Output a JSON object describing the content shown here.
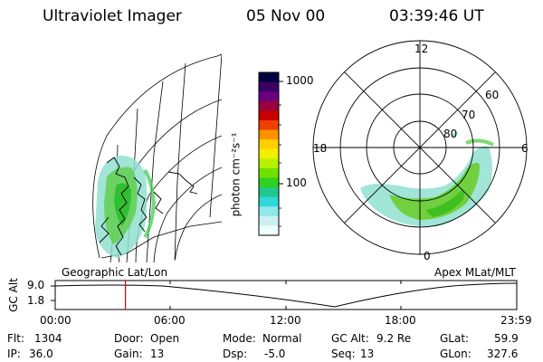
{
  "header": {
    "instrument": "Ultraviolet Imager",
    "date": "05 Nov 00",
    "time": "03:39:46 UT"
  },
  "colorbar": {
    "tick_labels": [
      "1000",
      "100"
    ],
    "unit_label": "photon cm⁻²s⁻¹",
    "colors": [
      "#000040",
      "#3a0060",
      "#6a0080",
      "#9a0040",
      "#c80000",
      "#ee4000",
      "#ff9000",
      "#ffd000",
      "#f0f000",
      "#b8f000",
      "#70e000",
      "#30d020",
      "#20c890",
      "#30d8d8",
      "#90e8e8",
      "#d0f0f0",
      "#eeffff"
    ]
  },
  "left_panel": {
    "label": "Geographic Lat/Lon"
  },
  "right_panel": {
    "label": "Apex MLat/MLT",
    "mlt_labels": [
      "12",
      "18",
      "6",
      "0"
    ],
    "mlat_labels": [
      "60",
      "70",
      "80"
    ]
  },
  "altitude_plot": {
    "ylabel": "GC Alt",
    "yticks": [
      "9.0",
      "1.8"
    ],
    "xticks": [
      "00:00",
      "06:00",
      "12:00",
      "18:00",
      "23:59"
    ],
    "current_time_marker": "03:39",
    "marker_color": "#dd0000"
  },
  "status": {
    "flt_label": "Flt:",
    "flt_value": "1304",
    "ip_label": "IP:",
    "ip_value": "36.0",
    "door_label": "Door:",
    "door_value": "Open",
    "gain_label": "Gain:",
    "gain_value": "13",
    "mode_label": "Mode:",
    "mode_value": "Normal",
    "dsp_label": "Dsp:",
    "dsp_value": "-5.0",
    "gcalt_label": "GC Alt:",
    "gcalt_value": "9.2 Re",
    "seq_label": "Seq:",
    "seq_value": "13",
    "glat_label": "GLat:",
    "glat_value": "59.9",
    "glon_label": "GLon:",
    "glon_value": "327.6"
  }
}
